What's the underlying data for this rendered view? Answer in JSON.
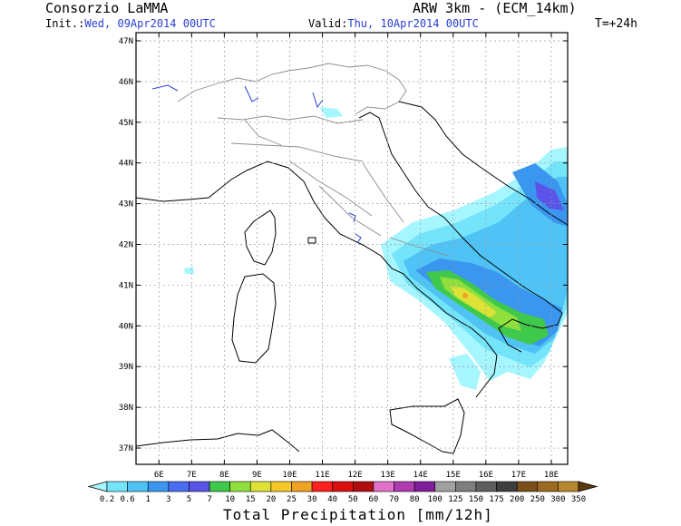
{
  "header": {
    "organization": "Consorzio LaMMA",
    "model": "ARW 3km - (ECM_14km)",
    "init_label": "Init.:",
    "init_value": "Wed, 09Apr2014 00UTC",
    "valid_label": "Valid:",
    "valid_value": "Thu, 10Apr2014 00UTC",
    "forecast_step": "T=+24h"
  },
  "map": {
    "lon_labels": [
      "6E",
      "7E",
      "8E",
      "9E",
      "10E",
      "11E",
      "12E",
      "13E",
      "14E",
      "15E",
      "16E",
      "17E",
      "18E"
    ],
    "lat_labels": [
      "47N",
      "46N",
      "45N",
      "44N",
      "43N",
      "42N",
      "41N",
      "40N",
      "39N",
      "38N",
      "37N"
    ],
    "lon_range": [
      5.3,
      18.5
    ],
    "lat_range": [
      36.6,
      47.2
    ]
  },
  "colorbar": {
    "title": "Total Precipitation [mm/12h]",
    "thresholds": [
      "0.2",
      "0.6",
      "1",
      "3",
      "5",
      "7",
      "10",
      "15",
      "20",
      "25",
      "30",
      "40",
      "50",
      "60",
      "70",
      "80",
      "100",
      "125",
      "150",
      "175",
      "200",
      "250",
      "300",
      "350"
    ],
    "colors": [
      "#a6f6ff",
      "#74e4fb",
      "#4fc3f5",
      "#3a96ef",
      "#4a6cf2",
      "#5a55e8",
      "#3ec94a",
      "#8fe03c",
      "#dfe236",
      "#f6c92b",
      "#f0a224",
      "#ff2020",
      "#d80f0f",
      "#b00d10",
      "#e070c8",
      "#b03ab0",
      "#7f1d9a",
      "#a0a0a0",
      "#7e7e7e",
      "#5e5e5e",
      "#3e3e3e",
      "#7a4f1a",
      "#9a6a20",
      "#b8862e",
      "#5c3a10"
    ]
  }
}
